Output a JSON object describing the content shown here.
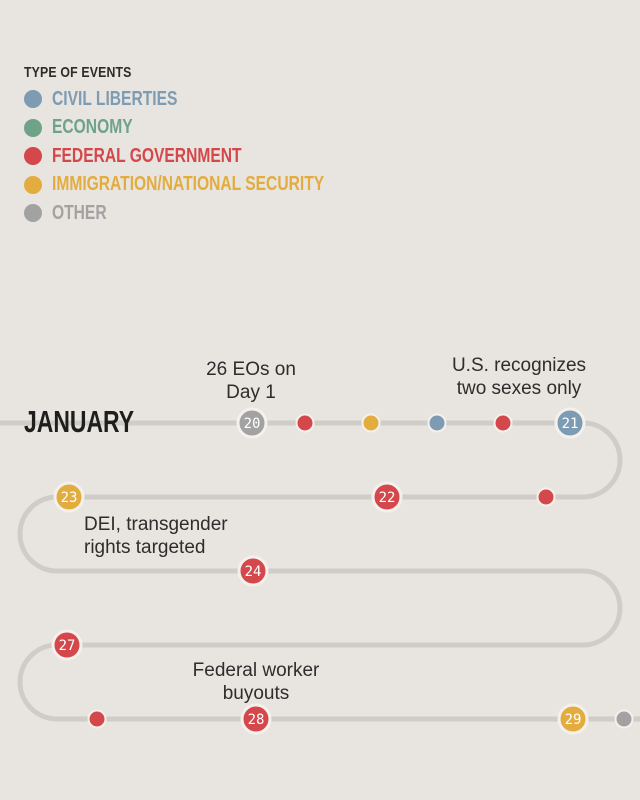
{
  "legend": {
    "title": "TYPE OF EVENTS",
    "items": [
      {
        "label": "CIVIL LIBERTIES",
        "color": "#7d9bb3"
      },
      {
        "label": "ECONOMY",
        "color": "#6fa388"
      },
      {
        "label": "FEDERAL GOVERNMENT",
        "color": "#d4474b"
      },
      {
        "label": "IMMIGRATION/NATIONAL SECURITY",
        "color": "#e3ac3e"
      },
      {
        "label": "OTHER",
        "color": "#a2a2a2"
      }
    ]
  },
  "timeline": {
    "month": "JANUARY",
    "events": [
      {
        "day": "20",
        "category": "OTHER"
      },
      {
        "day": "",
        "category": "FEDERAL GOVERNMENT"
      },
      {
        "day": "",
        "category": "IMMIGRATION/NATIONAL SECURITY"
      },
      {
        "day": "",
        "category": "CIVIL LIBERTIES"
      },
      {
        "day": "",
        "category": "FEDERAL GOVERNMENT"
      },
      {
        "day": "21",
        "category": "CIVIL LIBERTIES"
      },
      {
        "day": "",
        "category": "FEDERAL GOVERNMENT"
      },
      {
        "day": "22",
        "category": "FEDERAL GOVERNMENT"
      },
      {
        "day": "23",
        "category": "IMMIGRATION/NATIONAL SECURITY"
      },
      {
        "day": "24",
        "category": "FEDERAL GOVERNMENT"
      },
      {
        "day": "27",
        "category": "FEDERAL GOVERNMENT"
      },
      {
        "day": "",
        "category": "FEDERAL GOVERNMENT"
      },
      {
        "day": "28",
        "category": "FEDERAL GOVERNMENT"
      },
      {
        "day": "29",
        "category": "IMMIGRATION/NATIONAL SECURITY"
      },
      {
        "day": "",
        "category": "OTHER"
      }
    ],
    "annotations": [
      {
        "lines": [
          "26 EOs on",
          "Day 1"
        ]
      },
      {
        "lines": [
          "U.S. recognizes",
          "two sexes only"
        ]
      },
      {
        "lines": [
          "DEI, transgender",
          "rights targeted"
        ]
      },
      {
        "lines": [
          "Federal worker",
          "buyouts"
        ]
      }
    ]
  }
}
